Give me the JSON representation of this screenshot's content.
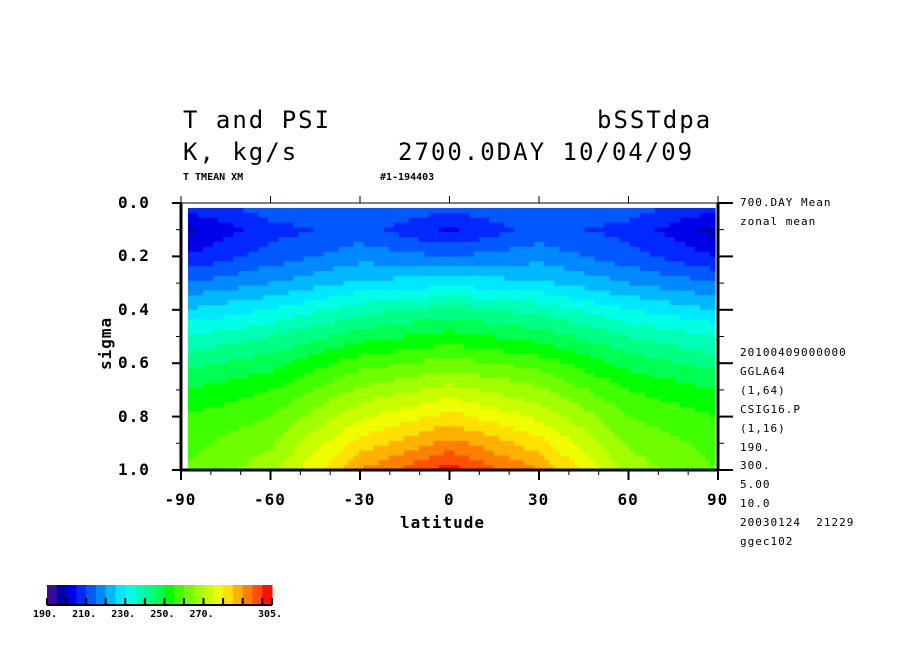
{
  "header": {
    "title_left": "T and PSI",
    "title_right": "bSSTdpa",
    "units": "K, kg/s",
    "time": "2700.0DAY 10/04/09",
    "var_label": "T TMEAN XM",
    "run_id": "#1-194403"
  },
  "side_info": {
    "top": [
      "700.DAY Mean",
      "zonal mean"
    ],
    "bottom": [
      "20100409000000",
      "GGLA64",
      "(1,64)",
      "CSIG16.P",
      "(1,16)",
      "190.",
      "300.",
      "5.00",
      "10.0",
      "20030124  21229",
      "ggec102"
    ]
  },
  "chart_data": {
    "type": "heatmap",
    "title": "T and PSI",
    "xlabel": "latitude",
    "ylabel": "sigma",
    "xlim": [
      -90,
      90
    ],
    "ylim": [
      1.0,
      0.0
    ],
    "xticks": [
      "-90",
      "-60",
      "-30",
      "0",
      "30",
      "60",
      "90"
    ],
    "yticks": [
      "0.0",
      "0.2",
      "0.4",
      "0.6",
      "0.8",
      "1.0"
    ],
    "lat": [
      -90,
      -60,
      -30,
      0,
      30,
      60,
      90
    ],
    "sigma": [
      0.03,
      0.1,
      0.2,
      0.3,
      0.4,
      0.5,
      0.6,
      0.7,
      0.8,
      0.9,
      1.0
    ],
    "values": [
      [
        205,
        212,
        215,
        210,
        215,
        212,
        205
      ],
      [
        198,
        208,
        212,
        204,
        212,
        208,
        198
      ],
      [
        205,
        212,
        218,
        215,
        218,
        212,
        205
      ],
      [
        215,
        220,
        226,
        228,
        226,
        220,
        215
      ],
      [
        225,
        230,
        238,
        242,
        238,
        230,
        225
      ],
      [
        235,
        240,
        248,
        252,
        248,
        240,
        235
      ],
      [
        243,
        248,
        258,
        262,
        258,
        248,
        243
      ],
      [
        250,
        255,
        266,
        272,
        266,
        255,
        250
      ],
      [
        255,
        260,
        274,
        282,
        274,
        260,
        255
      ],
      [
        258,
        264,
        282,
        292,
        282,
        264,
        258
      ],
      [
        260,
        268,
        290,
        302,
        290,
        268,
        260
      ]
    ],
    "contour_min": 190,
    "contour_max": 300,
    "contour_interval": 5,
    "colorbar": {
      "labels": [
        "190.",
        "210.",
        "230.",
        "250.",
        "270.",
        "305."
      ],
      "label_values": [
        190,
        210,
        230,
        250,
        270,
        305
      ],
      "min": 190,
      "max": 305,
      "colors": [
        "#3a0aa0",
        "#0000a8",
        "#0000e8",
        "#0028ff",
        "#0058ff",
        "#0088ff",
        "#00b8ff",
        "#00e8ff",
        "#00ffe4",
        "#00ffb4",
        "#00ff84",
        "#00ff50",
        "#00ff00",
        "#40ff00",
        "#70ff00",
        "#a0ff00",
        "#c8ff00",
        "#f0ff00",
        "#ffe000",
        "#ffb000",
        "#ff8000",
        "#ff5000",
        "#ff1000"
      ]
    }
  }
}
